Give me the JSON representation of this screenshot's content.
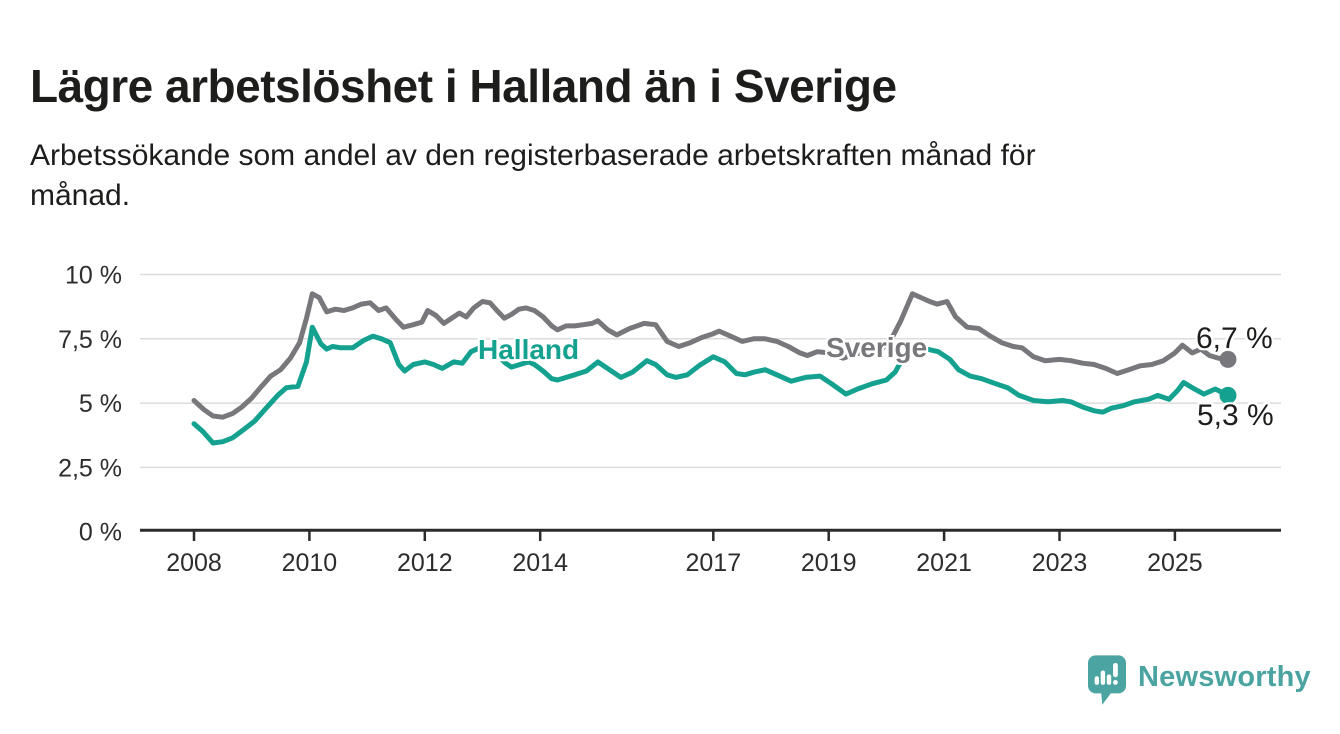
{
  "title": "Lägre arbetslöshet i Halland än i Sverige",
  "subtitle_lines": [
    "Arbetssökande som andel av den registerbaserade arbetskraften månad för",
    "månad."
  ],
  "branding": {
    "logo_text": "Newsworthy"
  },
  "colors": {
    "halland_line": "#14a18f",
    "sverige_line": "#78777b",
    "text": "#1d1d1b",
    "axis_text": "#2d2d2d",
    "gridline": "#dcdcdc",
    "axis_line": "#2b2b2b",
    "logo_teal": "#4ba4a1",
    "background": "#ffffff"
  },
  "chart_data": {
    "type": "line",
    "title": "Lägre arbetslöshet i Halland än i Sverige",
    "xlabel": "",
    "ylabel": "Arbetssökande som andel av den registerbaserade arbetskraften",
    "grid": true,
    "legend_position": "inline-labels",
    "x_axis": {
      "unit": "year",
      "tick_years": [
        2008,
        2010,
        2012,
        2014,
        2017,
        2019,
        2021,
        2023,
        2025
      ],
      "range": [
        2007.9,
        2026.8
      ]
    },
    "y_axis": {
      "unit": "%",
      "ticks": [
        0,
        2.5,
        5,
        7.5,
        10
      ],
      "tick_labels": [
        "0 %",
        "2,5 %",
        "5 %",
        "7,5 %",
        "10 %"
      ],
      "range": [
        0,
        10.5
      ]
    },
    "series": [
      {
        "name": "Sverige",
        "color": "#78777b",
        "end_label": "6,7 %",
        "end_value": 6.7,
        "points": [
          [
            2008.0,
            5.1
          ],
          [
            2008.17,
            4.75
          ],
          [
            2008.33,
            4.5
          ],
          [
            2008.5,
            4.45
          ],
          [
            2008.67,
            4.6
          ],
          [
            2008.83,
            4.85
          ],
          [
            2009.0,
            5.2
          ],
          [
            2009.17,
            5.65
          ],
          [
            2009.33,
            6.05
          ],
          [
            2009.5,
            6.3
          ],
          [
            2009.67,
            6.75
          ],
          [
            2009.83,
            7.35
          ],
          [
            2009.95,
            8.3
          ],
          [
            2010.05,
            9.25
          ],
          [
            2010.17,
            9.1
          ],
          [
            2010.3,
            8.55
          ],
          [
            2010.45,
            8.65
          ],
          [
            2010.6,
            8.6
          ],
          [
            2010.75,
            8.7
          ],
          [
            2010.9,
            8.85
          ],
          [
            2011.05,
            8.9
          ],
          [
            2011.2,
            8.6
          ],
          [
            2011.33,
            8.7
          ],
          [
            2011.5,
            8.25
          ],
          [
            2011.63,
            7.95
          ],
          [
            2011.8,
            8.05
          ],
          [
            2011.95,
            8.15
          ],
          [
            2012.05,
            8.6
          ],
          [
            2012.2,
            8.4
          ],
          [
            2012.33,
            8.1
          ],
          [
            2012.5,
            8.35
          ],
          [
            2012.6,
            8.5
          ],
          [
            2012.72,
            8.35
          ],
          [
            2012.85,
            8.7
          ],
          [
            2013.0,
            8.95
          ],
          [
            2013.13,
            8.9
          ],
          [
            2013.25,
            8.6
          ],
          [
            2013.38,
            8.3
          ],
          [
            2013.5,
            8.45
          ],
          [
            2013.63,
            8.65
          ],
          [
            2013.75,
            8.7
          ],
          [
            2013.9,
            8.6
          ],
          [
            2014.05,
            8.35
          ],
          [
            2014.2,
            8.0
          ],
          [
            2014.3,
            7.85
          ],
          [
            2014.45,
            8.0
          ],
          [
            2014.6,
            8.0
          ],
          [
            2014.75,
            8.05
          ],
          [
            2014.9,
            8.1
          ],
          [
            2015.0,
            8.2
          ],
          [
            2015.17,
            7.85
          ],
          [
            2015.33,
            7.65
          ],
          [
            2015.55,
            7.9
          ],
          [
            2015.8,
            8.1
          ],
          [
            2016.0,
            8.05
          ],
          [
            2016.2,
            7.4
          ],
          [
            2016.4,
            7.2
          ],
          [
            2016.6,
            7.35
          ],
          [
            2016.8,
            7.55
          ],
          [
            2017.0,
            7.7
          ],
          [
            2017.1,
            7.8
          ],
          [
            2017.3,
            7.6
          ],
          [
            2017.5,
            7.4
          ],
          [
            2017.7,
            7.5
          ],
          [
            2017.9,
            7.5
          ],
          [
            2018.1,
            7.4
          ],
          [
            2018.3,
            7.2
          ],
          [
            2018.5,
            6.95
          ],
          [
            2018.63,
            6.85
          ],
          [
            2018.8,
            7.0
          ],
          [
            2019.0,
            6.95
          ],
          [
            2019.25,
            6.75
          ],
          [
            2019.45,
            6.9
          ],
          [
            2019.65,
            7.0
          ],
          [
            2019.9,
            7.05
          ],
          [
            2020.1,
            7.55
          ],
          [
            2020.25,
            8.2
          ],
          [
            2020.45,
            9.25
          ],
          [
            2020.6,
            9.1
          ],
          [
            2020.75,
            8.95
          ],
          [
            2020.88,
            8.85
          ],
          [
            2021.05,
            8.95
          ],
          [
            2021.2,
            8.35
          ],
          [
            2021.4,
            7.95
          ],
          [
            2021.6,
            7.9
          ],
          [
            2021.8,
            7.6
          ],
          [
            2022.0,
            7.35
          ],
          [
            2022.2,
            7.2
          ],
          [
            2022.35,
            7.15
          ],
          [
            2022.55,
            6.8
          ],
          [
            2022.75,
            6.65
          ],
          [
            2023.0,
            6.7
          ],
          [
            2023.2,
            6.65
          ],
          [
            2023.4,
            6.55
          ],
          [
            2023.6,
            6.5
          ],
          [
            2023.8,
            6.35
          ],
          [
            2024.0,
            6.15
          ],
          [
            2024.2,
            6.3
          ],
          [
            2024.4,
            6.45
          ],
          [
            2024.6,
            6.5
          ],
          [
            2024.8,
            6.65
          ],
          [
            2025.0,
            6.95
          ],
          [
            2025.13,
            7.25
          ],
          [
            2025.3,
            6.95
          ],
          [
            2025.45,
            7.1
          ],
          [
            2025.6,
            6.85
          ],
          [
            2025.75,
            6.75
          ],
          [
            2025.92,
            6.7
          ]
        ]
      },
      {
        "name": "Halland",
        "color": "#14a18f",
        "end_label": "5,3 %",
        "end_value": 5.3,
        "points": [
          [
            2008.0,
            4.2
          ],
          [
            2008.15,
            3.9
          ],
          [
            2008.33,
            3.45
          ],
          [
            2008.5,
            3.5
          ],
          [
            2008.67,
            3.65
          ],
          [
            2008.85,
            3.95
          ],
          [
            2009.05,
            4.3
          ],
          [
            2009.25,
            4.8
          ],
          [
            2009.45,
            5.3
          ],
          [
            2009.6,
            5.6
          ],
          [
            2009.8,
            5.65
          ],
          [
            2009.95,
            6.6
          ],
          [
            2010.05,
            7.95
          ],
          [
            2010.2,
            7.3
          ],
          [
            2010.3,
            7.1
          ],
          [
            2010.4,
            7.2
          ],
          [
            2010.55,
            7.15
          ],
          [
            2010.75,
            7.15
          ],
          [
            2010.95,
            7.45
          ],
          [
            2011.1,
            7.6
          ],
          [
            2011.25,
            7.5
          ],
          [
            2011.4,
            7.35
          ],
          [
            2011.55,
            6.5
          ],
          [
            2011.65,
            6.25
          ],
          [
            2011.8,
            6.5
          ],
          [
            2012.0,
            6.6
          ],
          [
            2012.15,
            6.5
          ],
          [
            2012.3,
            6.35
          ],
          [
            2012.5,
            6.6
          ],
          [
            2012.65,
            6.55
          ],
          [
            2012.8,
            7.0
          ],
          [
            2012.95,
            7.15
          ],
          [
            2013.1,
            7.1
          ],
          [
            2013.25,
            6.9
          ],
          [
            2013.4,
            6.55
          ],
          [
            2013.5,
            6.4
          ],
          [
            2013.65,
            6.5
          ],
          [
            2013.8,
            6.6
          ],
          [
            2013.9,
            6.5
          ],
          [
            2014.05,
            6.25
          ],
          [
            2014.2,
            5.95
          ],
          [
            2014.3,
            5.9
          ],
          [
            2014.45,
            6.0
          ],
          [
            2014.6,
            6.1
          ],
          [
            2014.8,
            6.25
          ],
          [
            2015.0,
            6.6
          ],
          [
            2015.2,
            6.3
          ],
          [
            2015.4,
            6.0
          ],
          [
            2015.6,
            6.2
          ],
          [
            2015.85,
            6.65
          ],
          [
            2016.0,
            6.5
          ],
          [
            2016.2,
            6.1
          ],
          [
            2016.35,
            6.0
          ],
          [
            2016.55,
            6.1
          ],
          [
            2016.75,
            6.45
          ],
          [
            2017.0,
            6.8
          ],
          [
            2017.2,
            6.6
          ],
          [
            2017.4,
            6.15
          ],
          [
            2017.55,
            6.1
          ],
          [
            2017.7,
            6.2
          ],
          [
            2017.9,
            6.3
          ],
          [
            2018.1,
            6.1
          ],
          [
            2018.35,
            5.85
          ],
          [
            2018.6,
            6.0
          ],
          [
            2018.85,
            6.05
          ],
          [
            2019.05,
            5.75
          ],
          [
            2019.3,
            5.35
          ],
          [
            2019.5,
            5.55
          ],
          [
            2019.75,
            5.75
          ],
          [
            2020.0,
            5.9
          ],
          [
            2020.15,
            6.2
          ],
          [
            2020.35,
            7.0
          ],
          [
            2020.5,
            7.2
          ],
          [
            2020.7,
            7.1
          ],
          [
            2020.9,
            7.0
          ],
          [
            2021.1,
            6.7
          ],
          [
            2021.25,
            6.3
          ],
          [
            2021.45,
            6.05
          ],
          [
            2021.65,
            5.95
          ],
          [
            2021.9,
            5.75
          ],
          [
            2022.1,
            5.6
          ],
          [
            2022.3,
            5.3
          ],
          [
            2022.55,
            5.1
          ],
          [
            2022.8,
            5.05
          ],
          [
            2023.05,
            5.1
          ],
          [
            2023.2,
            5.05
          ],
          [
            2023.4,
            4.85
          ],
          [
            2023.6,
            4.7
          ],
          [
            2023.75,
            4.65
          ],
          [
            2023.9,
            4.8
          ],
          [
            2024.1,
            4.9
          ],
          [
            2024.3,
            5.05
          ],
          [
            2024.55,
            5.15
          ],
          [
            2024.7,
            5.3
          ],
          [
            2024.9,
            5.15
          ],
          [
            2025.05,
            5.5
          ],
          [
            2025.15,
            5.8
          ],
          [
            2025.3,
            5.6
          ],
          [
            2025.5,
            5.35
          ],
          [
            2025.7,
            5.55
          ],
          [
            2025.92,
            5.3
          ]
        ]
      }
    ]
  }
}
